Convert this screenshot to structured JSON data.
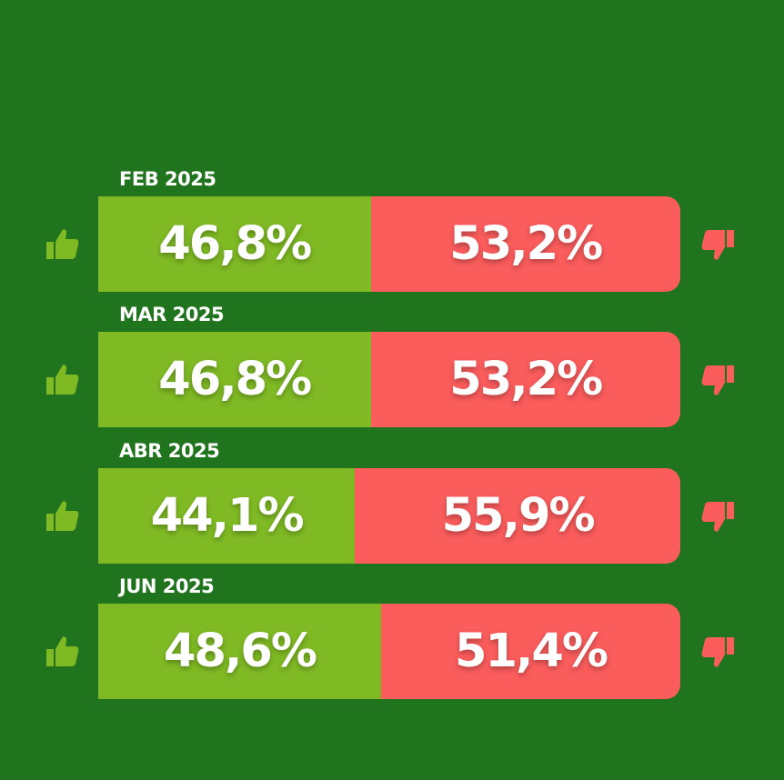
{
  "colors": {
    "background": "#21741e",
    "approve": "#7fba24",
    "disapprove": "#fb5c5c",
    "text": "#ffffff"
  },
  "icons": {
    "approve": "thumbs-up-icon",
    "disapprove": "thumbs-down-icon"
  },
  "chart_data": {
    "type": "bar",
    "orientation": "horizontal-stacked-100",
    "categories": [
      "FEB 2025",
      "MAR 2025",
      "ABR 2025",
      "JUN 2025"
    ],
    "series": [
      {
        "values": [
          46.8,
          46.8,
          44.1,
          48.6
        ],
        "labels": [
          "46,8%",
          "46,8%",
          "44,1%",
          "48,6%"
        ]
      },
      {
        "values": [
          53.2,
          53.2,
          55.9,
          51.4
        ],
        "labels": [
          "53,2%",
          "53,2%",
          "55,9%",
          "51,4%"
        ]
      }
    ]
  }
}
